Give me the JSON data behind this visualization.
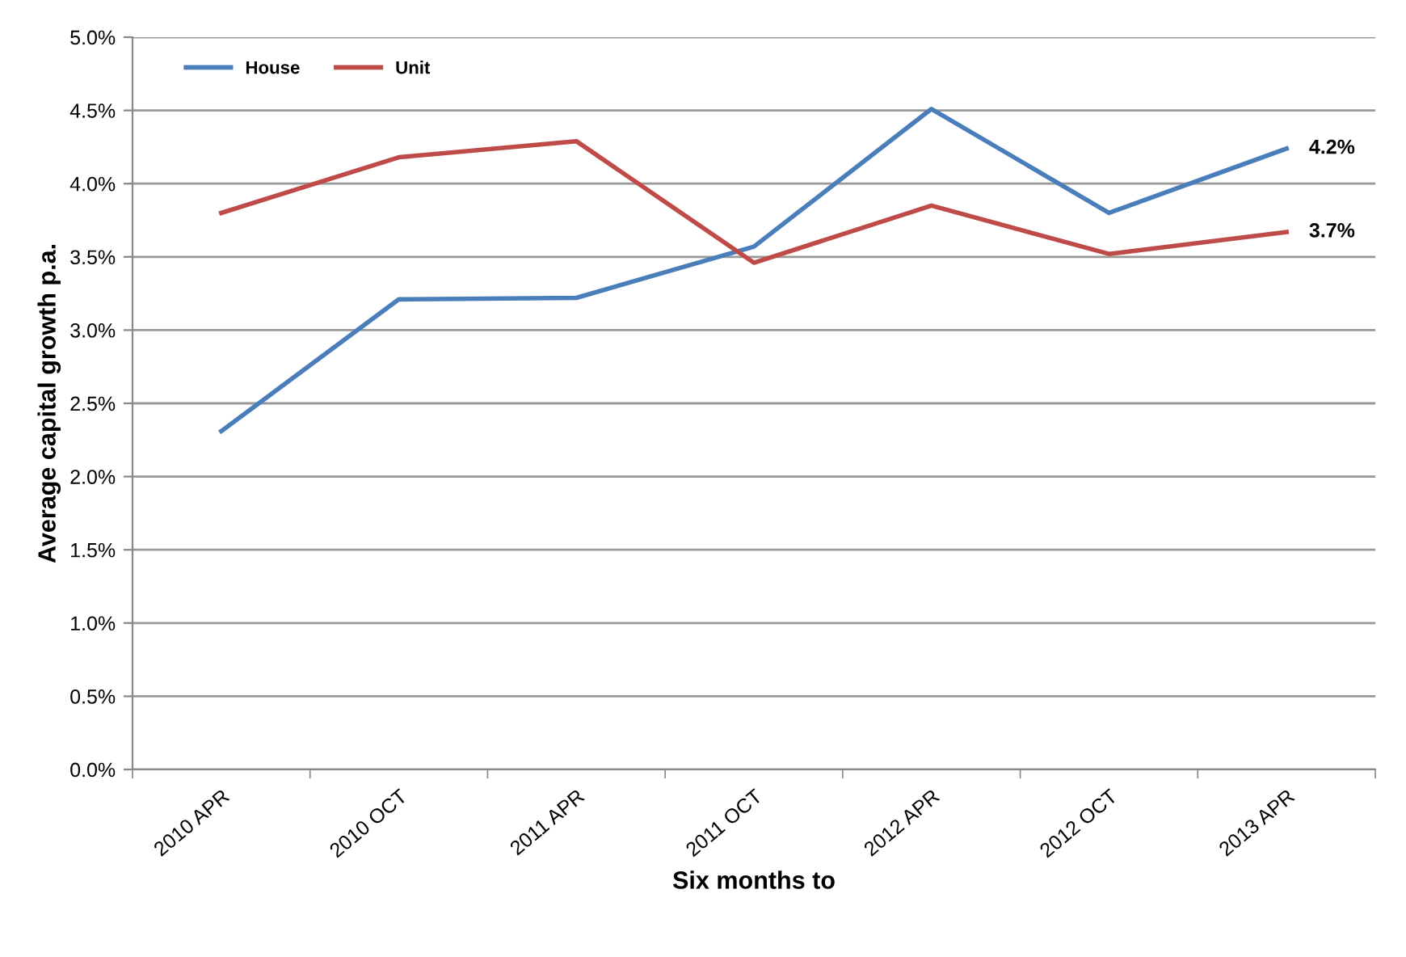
{
  "chart_data": {
    "type": "line",
    "xlabel": "Six months to",
    "ylabel": "Average capital growth p.a.",
    "categories": [
      "2010 APR",
      "2010 OCT",
      "2011 APR",
      "2011 OCT",
      "2012 APR",
      "2012 OCT",
      "2013 APR"
    ],
    "series": [
      {
        "name": "House",
        "color": "#4a7ebb",
        "values": [
          2.31,
          3.21,
          3.22,
          3.57,
          4.51,
          3.8,
          4.24
        ],
        "value_labels": [
          null,
          null,
          null,
          null,
          null,
          null,
          "4.2%"
        ]
      },
      {
        "name": "Unit",
        "color": "#be4b48",
        "values": [
          3.8,
          4.18,
          4.29,
          3.46,
          3.85,
          3.52,
          3.67
        ],
        "value_labels": [
          null,
          null,
          null,
          null,
          null,
          null,
          "3.7%"
        ]
      }
    ],
    "ylim": [
      0,
      5
    ],
    "yticks": [
      {
        "value": 0,
        "label": "0.0%"
      },
      {
        "value": 0.5,
        "label": "0.5%"
      },
      {
        "value": 1,
        "label": "1.0%"
      },
      {
        "value": 1.5,
        "label": "1.5%"
      },
      {
        "value": 2,
        "label": "2.0%"
      },
      {
        "value": 2.5,
        "label": "2.5%"
      },
      {
        "value": 3,
        "label": "3.0%"
      },
      {
        "value": 3.5,
        "label": "3.5%"
      },
      {
        "value": 4,
        "label": "4.0%"
      },
      {
        "value": 4.5,
        "label": "4.5%"
      },
      {
        "value": 5,
        "label": "5.0%"
      }
    ],
    "grid": "y",
    "legend": "top left",
    "marker": "none",
    "line_style": "solid"
  }
}
